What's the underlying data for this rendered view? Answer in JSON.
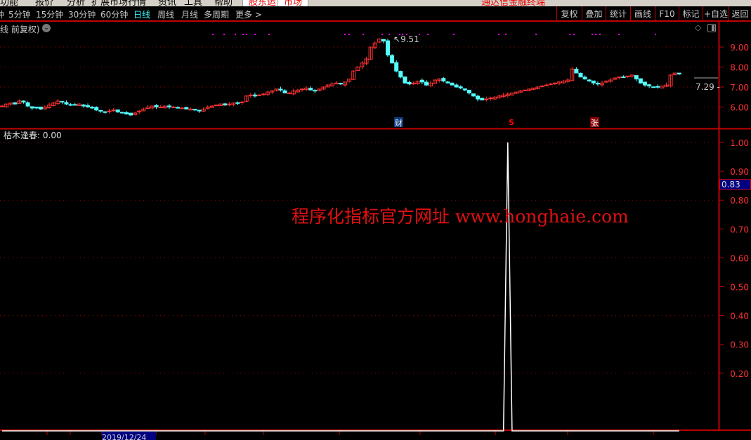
{
  "menu": {
    "items": [
      "功能",
      "报价",
      "分析",
      "扩展市场行情",
      "资讯",
      "工具",
      "帮助"
    ],
    "highlight": [
      "股东运",
      "市场"
    ],
    "title": "通达信金融终端"
  },
  "periods": [
    {
      "label": "钟"
    },
    {
      "label": "5分钟"
    },
    {
      "label": "15分钟"
    },
    {
      "label": "30分钟"
    },
    {
      "label": "60分钟"
    },
    {
      "label": "日线",
      "active": true
    },
    {
      "label": "周线"
    },
    {
      "label": "月线"
    },
    {
      "label": "多周期"
    },
    {
      "label": "更多 >"
    }
  ],
  "toolbar_buttons": [
    "复权",
    "叠加",
    "统计",
    "画线",
    "F10",
    "标记",
    "+自选",
    "返回"
  ],
  "main_chart": {
    "title": "线 前复权)",
    "y_ticks": [
      "9.00",
      "8.00",
      "7.00",
      "6.00"
    ],
    "high_label": "9.51",
    "last_price": "7.29",
    "events": [
      {
        "label": "财",
        "color": "#0a3a7a"
      },
      {
        "label": "S",
        "color": "#e00000"
      },
      {
        "label": "张",
        "color": "#8b0000"
      }
    ],
    "closes": [
      6.05,
      6.15,
      6.2,
      6.15,
      6.3,
      6.25,
      6.05,
      5.95,
      5.95,
      5.9,
      6.0,
      6.1,
      6.2,
      6.3,
      6.25,
      6.15,
      6.1,
      6.1,
      6.15,
      6.05,
      6.0,
      5.95,
      5.85,
      5.8,
      5.75,
      5.8,
      5.85,
      5.75,
      5.7,
      5.65,
      5.6,
      5.7,
      5.8,
      5.9,
      6.0,
      6.05,
      6.0,
      6.0,
      6.05,
      6.0,
      6.0,
      5.95,
      5.95,
      5.9,
      5.9,
      5.85,
      5.8,
      5.9,
      6.0,
      6.05,
      6.1,
      6.15,
      6.1,
      6.15,
      6.2,
      6.2,
      6.25,
      6.55,
      6.6,
      6.55,
      6.6,
      6.65,
      6.75,
      6.8,
      6.9,
      6.85,
      6.7,
      6.7,
      6.8,
      6.85,
      6.9,
      6.95,
      6.85,
      6.8,
      6.9,
      7.0,
      7.1,
      7.15,
      7.2,
      7.15,
      7.25,
      7.4,
      7.8,
      8.0,
      8.2,
      8.4,
      9.0,
      9.2,
      9.4,
      9.3,
      8.6,
      8.2,
      7.8,
      7.5,
      7.2,
      7.15,
      7.2,
      7.3,
      7.25,
      7.1,
      7.2,
      7.35,
      7.4,
      7.3,
      7.2,
      7.1,
      7.0,
      6.95,
      6.85,
      6.7,
      6.55,
      6.4,
      6.35,
      6.4,
      6.45,
      6.5,
      6.55,
      6.6,
      6.65,
      6.7,
      6.75,
      6.8,
      6.85,
      6.9,
      6.95,
      7.0,
      7.05,
      7.1,
      7.15,
      7.2,
      7.25,
      7.3,
      7.35,
      7.9,
      7.7,
      7.5,
      7.4,
      7.3,
      7.2,
      7.15,
      7.2,
      7.3,
      7.35,
      7.45,
      7.5,
      7.5,
      7.55,
      7.6,
      7.4,
      7.2,
      7.1,
      7.05,
      7.0,
      7.0,
      7.05,
      7.1,
      7.6,
      7.7,
      7.65
    ],
    "signal_dots_visible": true
  },
  "indicator": {
    "name": "枯木逢春",
    "value": "0.00",
    "y_ticks": [
      "1.00",
      "0.90",
      "0.80",
      "0.70",
      "0.60",
      "0.50",
      "0.40",
      "0.30",
      "0.20"
    ],
    "current_label": "0.83",
    "spike_value": 1.0
  },
  "time_axis": {
    "selected_date": "2019/12/24"
  },
  "watermark": "程序化指标官方网址 www.honghaie.com",
  "colors": {
    "up": "#ff3333",
    "down": "#54ffff",
    "axis": "#c00000",
    "magenta": "#ff00ff"
  }
}
